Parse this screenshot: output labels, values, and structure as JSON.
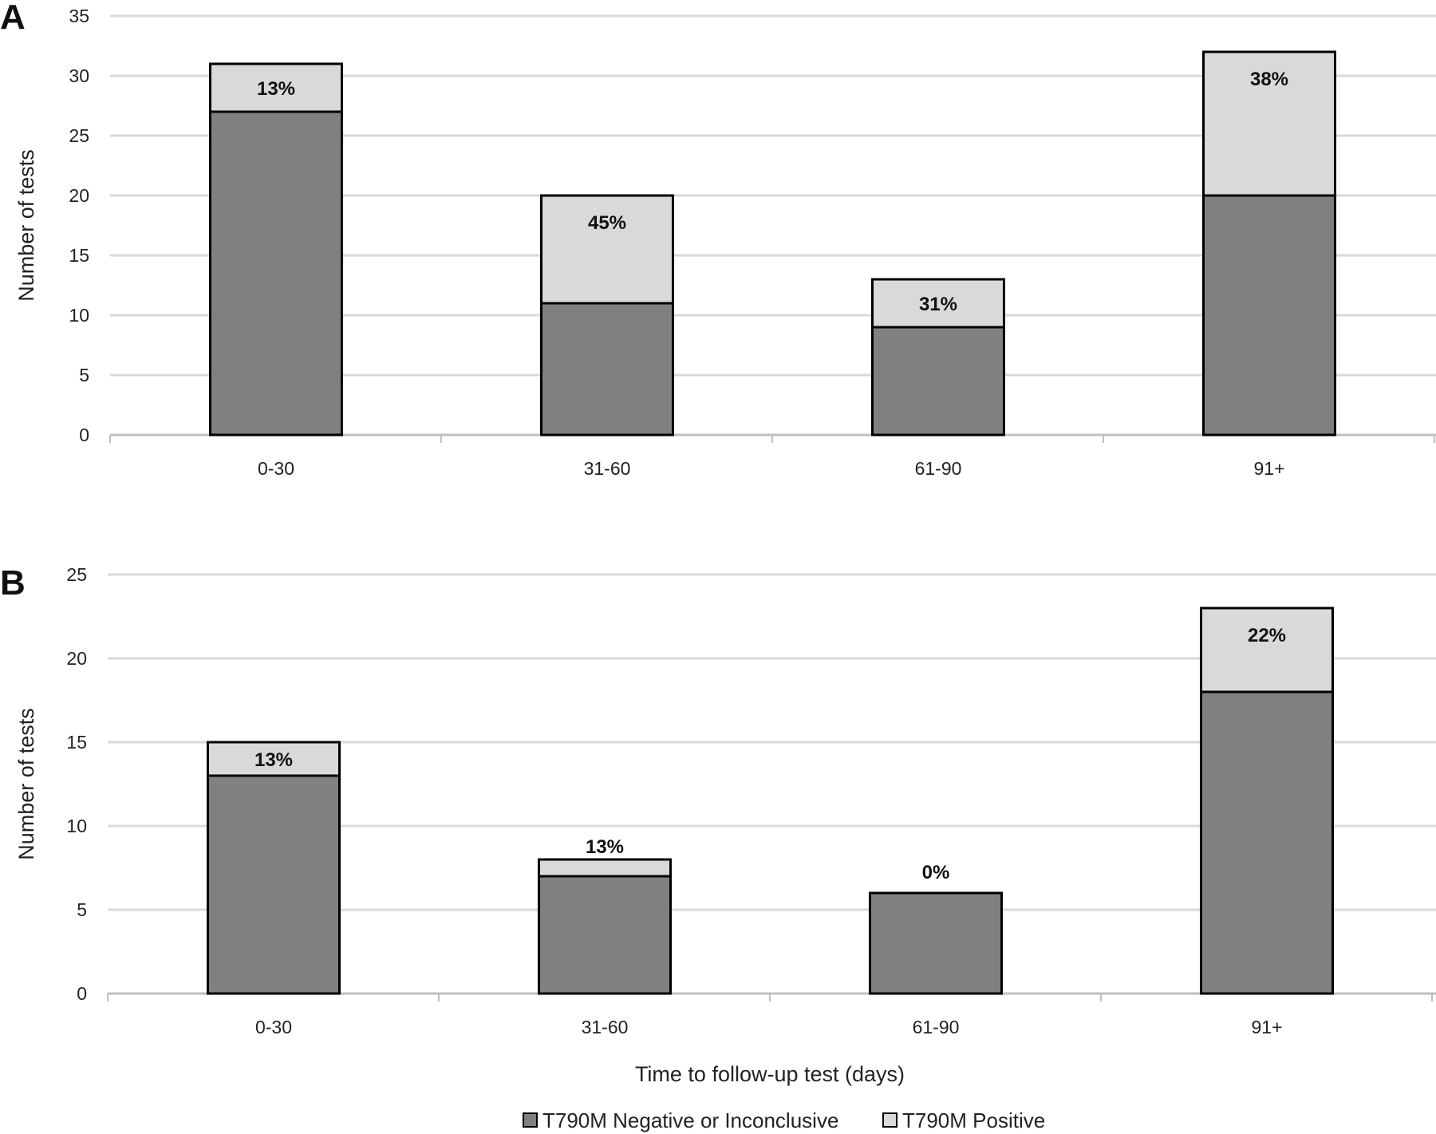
{
  "chart_data": [
    {
      "type": "bar",
      "stacked": true,
      "panel": "A",
      "categories": [
        "0-30",
        "31-60",
        "61-90",
        "91+"
      ],
      "series": [
        {
          "name": "T790M Negative or Inconclusive",
          "values": [
            27,
            11,
            9,
            20
          ],
          "color": "#808080"
        },
        {
          "name": "T790M Positive",
          "values": [
            4,
            9,
            4,
            12
          ],
          "color": "#d9d9d9"
        }
      ],
      "data_labels": [
        "13%",
        "45%",
        "31%",
        "38%"
      ],
      "ylabel": "Number of tests",
      "ylim": [
        0,
        35
      ],
      "yticks": [
        0,
        5,
        10,
        15,
        20,
        25,
        30,
        35
      ],
      "grid": true
    },
    {
      "type": "bar",
      "stacked": true,
      "panel": "B",
      "categories": [
        "0-30",
        "31-60",
        "61-90",
        "91+"
      ],
      "series": [
        {
          "name": "T790M Negative or Inconclusive",
          "values": [
            13,
            7,
            6,
            18
          ],
          "color": "#808080"
        },
        {
          "name": "T790M Positive",
          "values": [
            2,
            1,
            0,
            5
          ],
          "color": "#d9d9d9"
        }
      ],
      "data_labels": [
        "13%",
        "13%",
        "0%",
        "22%"
      ],
      "ylabel": "Number of tests",
      "xlabel": "Time to follow-up test (days)",
      "ylim": [
        0,
        25
      ],
      "yticks": [
        0,
        5,
        10,
        15,
        20,
        25
      ],
      "grid": true
    }
  ],
  "legend": {
    "position": "bottom",
    "items": [
      {
        "label": "T790M Negative or Inconclusive",
        "color": "#808080"
      },
      {
        "label": "T790M Positive",
        "color": "#d9d9d9"
      }
    ]
  }
}
